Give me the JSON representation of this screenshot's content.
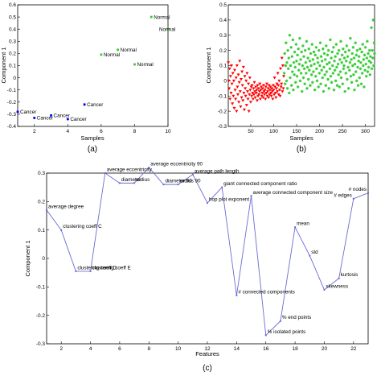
{
  "chart_data": [
    {
      "type": "scatter",
      "panel_label": "(a)",
      "xlabel": "Samples",
      "ylabel": "Component 1",
      "xlim": [
        1,
        10
      ],
      "ylim": [
        -0.4,
        0.6
      ],
      "xticks": [
        "2",
        "4",
        "6",
        "8",
        "10"
      ],
      "yticks": [
        "-0.4",
        "-0.3",
        "-0.2",
        "-0.1",
        "0",
        "0.1",
        "0.2",
        "0.3",
        "0.4",
        "0.5",
        "0.6"
      ],
      "points": [
        {
          "x": 1,
          "y": -0.28,
          "label": "Cancer",
          "cls": "cancer"
        },
        {
          "x": 2,
          "y": -0.33,
          "label": "Cancer",
          "cls": "cancer"
        },
        {
          "x": 3,
          "y": -0.31,
          "label": "Cancer",
          "cls": "cancer"
        },
        {
          "x": 4,
          "y": -0.34,
          "label": "Cancer",
          "cls": "cancer"
        },
        {
          "x": 5,
          "y": -0.22,
          "label": "Cancer",
          "cls": "cancer"
        },
        {
          "x": 6,
          "y": 0.19,
          "label": "Normal",
          "cls": "normal"
        },
        {
          "x": 7,
          "y": 0.23,
          "label": "Normal",
          "cls": "normal"
        },
        {
          "x": 8,
          "y": 0.11,
          "label": "Normal",
          "cls": "normal"
        },
        {
          "x": 9,
          "y": 0.5,
          "label": "Normal",
          "cls": "normal"
        },
        {
          "x": 10,
          "y": 0.4,
          "label": "Normal",
          "cls": "normal"
        }
      ],
      "colors": {
        "cancer": "#0000ff",
        "normal": "#33cc33"
      }
    },
    {
      "type": "scatter",
      "panel_label": "(b)",
      "xlabel": "Samples",
      "ylabel": "Component 1",
      "xlim": [
        1,
        320
      ],
      "ylim": [
        -0.3,
        0.5
      ],
      "xticks": [
        "50",
        "100",
        "150",
        "200",
        "250",
        "300"
      ],
      "yticks": [
        "-0.3",
        "-0.2",
        "-0.1",
        "0",
        "0.1",
        "0.2",
        "0.3",
        "0.4",
        "0.5"
      ],
      "series": [
        {
          "marker": "triangle-down",
          "color": "#ff0000",
          "xrange": [
            1,
            122
          ],
          "values": [
            0.12,
            0.0,
            -0.05,
            0.08,
            -0.12,
            0.03,
            -0.08,
            0.1,
            -0.02,
            -0.15,
            0.05,
            -0.1,
            0.0,
            -0.18,
            0.07,
            -0.06,
            -0.12,
            0.02,
            -0.2,
            0.1,
            -0.04,
            -0.09,
            0.04,
            -0.14,
            -0.01,
            0.13,
            -0.07,
            -0.17,
            0.01,
            -0.11,
            0.06,
            -0.03,
            -0.13,
            0.09,
            -0.08,
            -0.19,
            0.03,
            -0.05,
            -0.1,
            0.0,
            -0.16,
            0.05,
            -0.07,
            -0.12,
            -0.02,
            -0.2,
            -0.09,
            0.02,
            -0.06,
            -0.14,
            -0.04,
            -0.1,
            -0.03,
            -0.08,
            -0.12,
            -0.05,
            -0.09,
            -0.01,
            -0.07,
            -0.11,
            -0.04,
            -0.08,
            -0.06,
            -0.13,
            -0.03,
            -0.1,
            -0.05,
            -0.09,
            -0.07,
            -0.02,
            -0.12,
            -0.06,
            -0.04,
            -0.1,
            -0.08,
            -0.05,
            -0.11,
            -0.03,
            -0.07,
            -0.09,
            -0.06,
            -0.12,
            -0.04,
            -0.08,
            -0.02,
            -0.1,
            -0.07,
            -0.05,
            -0.11,
            -0.03,
            -0.09,
            -0.06,
            -0.04,
            -0.08,
            -0.1,
            -0.05,
            -0.07,
            -0.12,
            -0.03,
            -0.06,
            -0.09,
            0.02,
            -0.04,
            -0.08,
            -0.11,
            -0.05,
            -0.02,
            -0.07,
            0.05,
            -0.03,
            -0.09,
            0.0,
            -0.06,
            -0.1,
            0.08,
            -0.04,
            -0.02,
            0.15,
            -0.07,
            0.1,
            -0.05,
            0.03
          ]
        },
        {
          "marker": "asterisk",
          "color": "#33cc33",
          "xrange": [
            123,
            320
          ],
          "values": [
            0.05,
            0.18,
            -0.02,
            0.1,
            0.25,
            0.0,
            0.12,
            -0.05,
            0.2,
            0.08,
            0.15,
            -0.08,
            0.3,
            0.02,
            0.1,
            0.22,
            -0.03,
            0.16,
            0.06,
            0.27,
            -0.06,
            0.12,
            0.04,
            0.19,
            0.09,
            -0.01,
            0.24,
            0.13,
            0.03,
            0.17,
            -0.04,
            0.21,
            0.07,
            0.11,
            0.28,
            0.0,
            0.14,
            0.05,
            0.19,
            -0.07,
            0.1,
            0.23,
            0.02,
            0.16,
            0.08,
            -0.02,
            0.2,
            0.12,
            0.05,
            0.26,
            -0.05,
            0.09,
            0.15,
            0.01,
            0.21,
            0.07,
            0.13,
            -0.03,
            0.18,
            0.1,
            0.04,
            0.24,
            -0.01,
            0.14,
            0.06,
            0.19,
            0.11,
            -0.06,
            0.17,
            0.03,
            0.22,
            0.08,
            0.0,
            0.15,
            0.12,
            -0.04,
            0.2,
            0.05,
            0.1,
            0.25,
            -0.02,
            0.16,
            0.07,
            0.13,
            0.02,
            0.21,
            -0.07,
            0.09,
            0.18,
            0.04,
            0.14,
            -0.03,
            0.23,
            0.06,
            0.11,
            0.17,
            0.01,
            0.2,
            -0.05,
            0.12,
            0.08,
            0.27,
            0.03,
            0.15,
            -0.01,
            0.19,
            0.1,
            0.05,
            0.22,
            -0.06,
            0.13,
            0.07,
            0.16,
            0.0,
            0.24,
            0.09,
            -0.03,
            0.18,
            0.11,
            0.04,
            0.2,
            -0.04,
            0.14,
            0.06,
            0.26,
            0.02,
            0.12,
            0.17,
            -0.02,
            0.21,
            0.08,
            0.1,
            0.15,
            -0.07,
            0.19,
            0.05,
            0.13,
            0.23,
            0.01,
            0.16,
            0.09,
            -0.05,
            0.2,
            0.07,
            0.12,
            0.28,
            0.03,
            0.14,
            -0.01,
            0.18,
            0.1,
            0.22,
            0.04,
            0.15,
            -0.06,
            0.11,
            0.25,
            0.06,
            0.17,
            0.0,
            0.2,
            0.09,
            -0.03,
            0.13,
            0.16,
            0.02,
            0.21,
            0.08,
            0.12,
            -0.02,
            0.19,
            0.05,
            0.24,
            0.1,
            0.14,
            -0.04,
            0.17,
            0.07,
            0.22,
            0.11,
            0.03,
            0.15,
            0.26,
            0.06,
            0.18,
            0.09,
            0.13,
            0.2,
            0.04,
            0.16,
            0.12,
            0.35,
            0.08,
            0.2,
            0.15,
            0.4,
            0.1,
            0.25,
            0.18
          ]
        }
      ]
    },
    {
      "type": "line",
      "panel_label": "(c)",
      "xlabel": "Features",
      "ylabel": "Component 1",
      "xlim": [
        1,
        23
      ],
      "ylim": [
        -0.3,
        0.3
      ],
      "xticks": [
        "2",
        "4",
        "6",
        "8",
        "10",
        "12",
        "14",
        "16",
        "18",
        "20",
        "22"
      ],
      "yticks": [
        "-0.3",
        "-0.2",
        "-0.1",
        "0",
        "0.1",
        "0.2",
        "0.3"
      ],
      "color": "#6b6bd6",
      "points": [
        {
          "x": 1,
          "y": 0.17,
          "label": "average degree"
        },
        {
          "x": 2,
          "y": 0.1,
          "label": "clustering coeff C"
        },
        {
          "x": 3,
          "y": -0.045,
          "label": "clustering coeff D"
        },
        {
          "x": 4,
          "y": -0.045,
          "label": "clustering coeff E"
        },
        {
          "x": 5,
          "y": 0.3,
          "label": "average eccentricity"
        },
        {
          "x": 6,
          "y": 0.265,
          "label": "diameter"
        },
        {
          "x": 7,
          "y": 0.265,
          "label": "radius"
        },
        {
          "x": 8,
          "y": 0.32,
          "label": "average eccentricity 90"
        },
        {
          "x": 9,
          "y": 0.26,
          "label": "diameter 90"
        },
        {
          "x": 10,
          "y": 0.26,
          "label": "radius 90"
        },
        {
          "x": 11,
          "y": 0.295,
          "label": "average path length"
        },
        {
          "x": 12,
          "y": 0.195,
          "label": "hop plot exponent"
        },
        {
          "x": 13,
          "y": 0.25,
          "label": "giant connected component ratio"
        },
        {
          "x": 14,
          "y": -0.13,
          "label": "# connected components"
        },
        {
          "x": 15,
          "y": 0.22,
          "label": "average connected component size"
        },
        {
          "x": 16,
          "y": -0.27,
          "label": "% isolated points"
        },
        {
          "x": 17,
          "y": -0.22,
          "label": "% end points"
        },
        {
          "x": 18,
          "y": 0.11,
          "label": "mean"
        },
        {
          "x": 19,
          "y": 0.01,
          "label": "std"
        },
        {
          "x": 20,
          "y": -0.11,
          "label": "skewness"
        },
        {
          "x": 21,
          "y": -0.07,
          "label": "kurtosis"
        },
        {
          "x": 22,
          "y": 0.21,
          "label": "# edges"
        },
        {
          "x": 23,
          "y": 0.23,
          "label": "# nodes"
        }
      ]
    }
  ]
}
